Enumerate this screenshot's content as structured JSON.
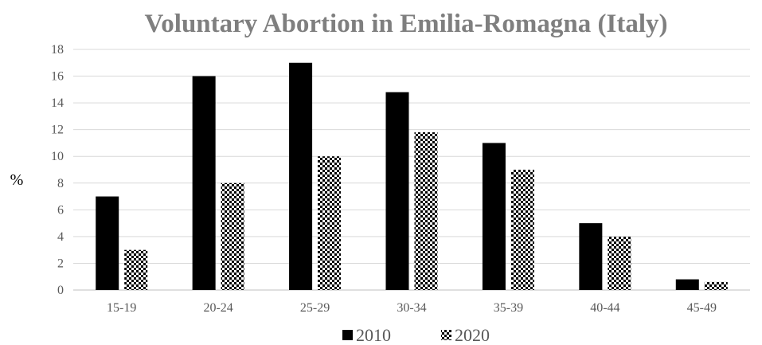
{
  "chart_data": {
    "type": "bar",
    "title": "Voluntary Abortion in Emilia-Romagna (Italy)",
    "xlabel": "",
    "ylabel": "%",
    "categories": [
      "15-19",
      "20-24",
      "25-29",
      "30-34",
      "35-39",
      "40-44",
      "45-49"
    ],
    "series": [
      {
        "name": "2010",
        "values": [
          7,
          16,
          17,
          14.8,
          11,
          5,
          0.8
        ],
        "pattern": "solid"
      },
      {
        "name": "2020",
        "values": [
          3,
          8,
          10,
          11.8,
          9,
          4,
          0.6
        ],
        "pattern": "checkerboard"
      }
    ],
    "ylim": [
      0,
      18
    ],
    "yticks": [
      0,
      2,
      4,
      6,
      8,
      10,
      12,
      14,
      16,
      18
    ],
    "grid": true,
    "legend_position": "bottom",
    "colors": {
      "bar": "#000000",
      "grid": "#d9d9d9",
      "axis_text": "#595959",
      "title": "#7f7f7f"
    }
  }
}
